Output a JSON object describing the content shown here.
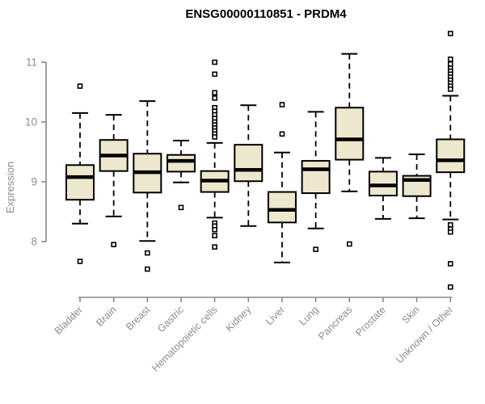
{
  "chart_data": {
    "type": "boxplot",
    "title": "ENSG00000110851 - PRDM4",
    "ylabel": "Expression",
    "xlabel": "",
    "ylim": [
      7.0,
      11.6
    ],
    "yticks": [
      8,
      9,
      10,
      11
    ],
    "grid": false,
    "legend": "none",
    "categories": [
      "Bladder",
      "Brain",
      "Breast",
      "Gastric",
      "Hematopoietic cells",
      "Kidney",
      "Liver",
      "Lung",
      "Pancreas",
      "Prostate",
      "Skin",
      "Unknown / Other"
    ],
    "series": [
      {
        "name": "Bladder",
        "whisker_low": 8.3,
        "q1": 8.7,
        "median": 9.08,
        "q3": 9.28,
        "whisker_high": 10.15,
        "outliers": [
          10.6,
          7.67
        ]
      },
      {
        "name": "Brain",
        "whisker_low": 8.42,
        "q1": 9.18,
        "median": 9.44,
        "q3": 9.7,
        "whisker_high": 10.12,
        "outliers": [
          7.95
        ]
      },
      {
        "name": "Breast",
        "whisker_low": 8.01,
        "q1": 8.82,
        "median": 9.16,
        "q3": 9.47,
        "whisker_high": 10.35,
        "outliers": [
          7.81,
          7.54
        ]
      },
      {
        "name": "Gastric",
        "whisker_low": 8.99,
        "q1": 9.17,
        "median": 9.35,
        "q3": 9.45,
        "whisker_high": 9.69,
        "outliers": [
          8.57
        ]
      },
      {
        "name": "Hematopoietic cells",
        "whisker_low": 8.4,
        "q1": 8.83,
        "median": 9.02,
        "q3": 9.18,
        "whisker_high": 9.65,
        "outliers": [
          11.0,
          10.8,
          10.49,
          10.4,
          10.24,
          10.18,
          10.12,
          10.06,
          10.0,
          9.95,
          9.9,
          9.85,
          9.8,
          9.75,
          8.31,
          8.26,
          8.2,
          8.1,
          7.91
        ]
      },
      {
        "name": "Kidney",
        "whisker_low": 8.26,
        "q1": 9.01,
        "median": 9.2,
        "q3": 9.62,
        "whisker_high": 10.28,
        "outliers": []
      },
      {
        "name": "Liver",
        "whisker_low": 7.65,
        "q1": 8.32,
        "median": 8.53,
        "q3": 8.83,
        "whisker_high": 9.49,
        "outliers": [
          10.29,
          9.8
        ]
      },
      {
        "name": "Lung",
        "whisker_low": 8.22,
        "q1": 8.81,
        "median": 9.21,
        "q3": 9.35,
        "whisker_high": 10.17,
        "outliers": [
          7.87
        ]
      },
      {
        "name": "Pancreas",
        "whisker_low": 8.84,
        "q1": 9.37,
        "median": 9.71,
        "q3": 10.24,
        "whisker_high": 11.14,
        "outliers": [
          7.96
        ]
      },
      {
        "name": "Prostate",
        "whisker_low": 8.38,
        "q1": 8.77,
        "median": 8.94,
        "q3": 9.17,
        "whisker_high": 9.4,
        "outliers": []
      },
      {
        "name": "Skin",
        "whisker_low": 8.39,
        "q1": 8.76,
        "median": 9.03,
        "q3": 9.1,
        "whisker_high": 9.46,
        "outliers": []
      },
      {
        "name": "Unknown / Other",
        "whisker_low": 8.37,
        "q1": 9.16,
        "median": 9.36,
        "q3": 9.71,
        "whisker_high": 10.44,
        "outliers": [
          11.48,
          11.05,
          10.97,
          10.9,
          10.85,
          10.8,
          10.75,
          10.7,
          10.65,
          10.6,
          10.55,
          8.28,
          8.21,
          8.16,
          7.63,
          7.24
        ]
      }
    ]
  },
  "colors": {
    "box_fill": "#EDE7CE",
    "box_stroke": "#000000",
    "median_color": "#000000",
    "whisker_color": "#000000",
    "outlier_stroke": "#000000",
    "outlier_fill": "#FFFFFF",
    "axis_text": "#8C8C8C",
    "axis_line": "#888888",
    "title_color": "#000000",
    "background": "#FFFFFF"
  }
}
